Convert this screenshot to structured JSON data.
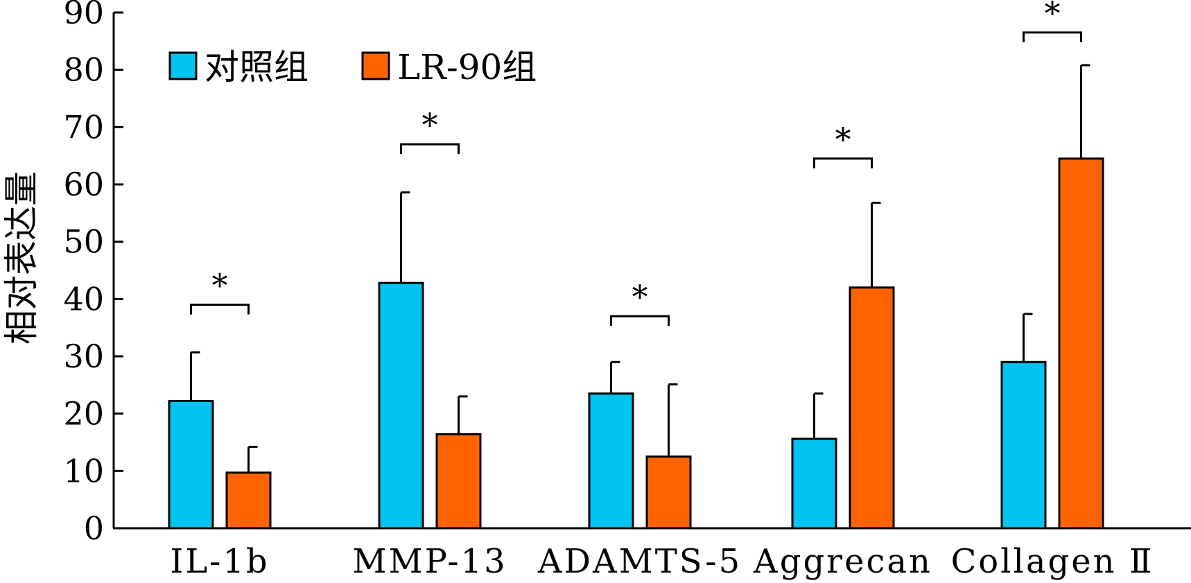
{
  "chart_data": {
    "type": "bar",
    "title": "",
    "xlabel": "",
    "ylabel": "相对表达量",
    "ylim": [
      0,
      90
    ],
    "yticks": [
      0,
      10,
      20,
      30,
      40,
      50,
      60,
      70,
      80,
      90
    ],
    "grid": false,
    "legend_position": "top-left",
    "categories": [
      "IL-1b",
      "MMP-13",
      "ADAMTS-5",
      "Aggrecan",
      "Collagen Ⅱ"
    ],
    "series": [
      {
        "name": "对照组",
        "color": "#00c4f0",
        "values": [
          22.2,
          42.8,
          23.5,
          15.6,
          29.0
        ],
        "errors": [
          8.5,
          15.8,
          5.5,
          7.9,
          8.4
        ]
      },
      {
        "name": "LR-90组",
        "color": "#ff6400",
        "values": [
          9.7,
          16.4,
          12.5,
          42.0,
          64.5
        ],
        "errors": [
          4.5,
          6.6,
          12.6,
          14.8,
          16.3
        ]
      }
    ],
    "significance": [
      {
        "label": "*",
        "level": 39.0
      },
      {
        "label": "*",
        "level": 67.0
      },
      {
        "label": "*",
        "level": 37.0
      },
      {
        "label": "*",
        "level": 64.5
      },
      {
        "label": "*",
        "level": 86.5
      }
    ]
  }
}
